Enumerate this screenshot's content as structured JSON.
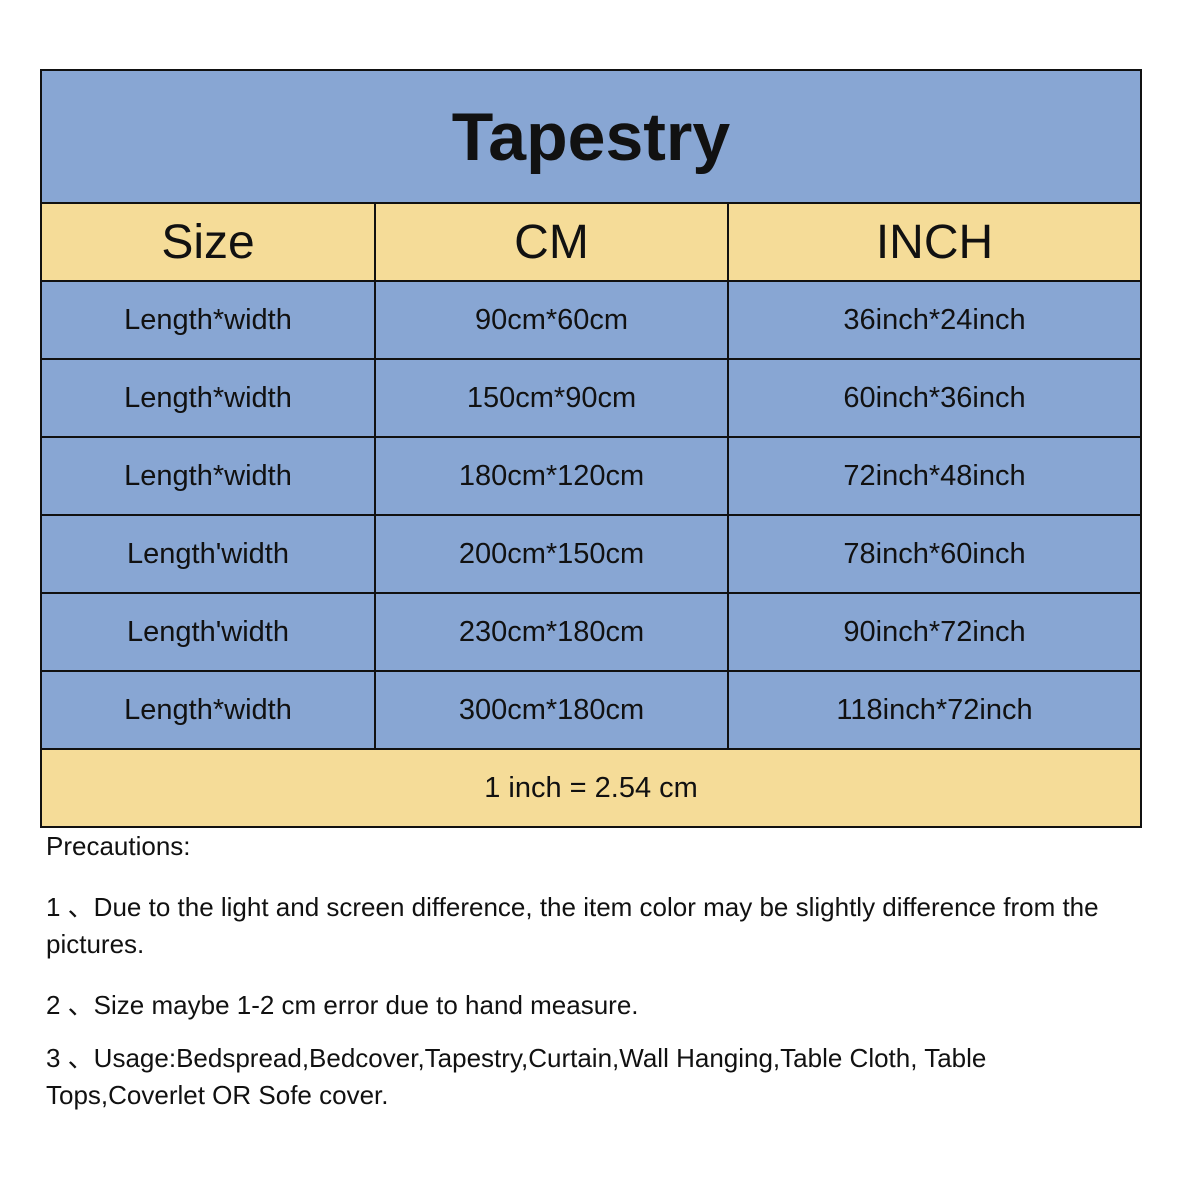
{
  "title": "Tapestry",
  "colors": {
    "blue": "#88a6d3",
    "yellow": "#f5dc98"
  },
  "columns": [
    "Size",
    "CM",
    "INCH"
  ],
  "rows": [
    [
      "Length*width",
      "90cm*60cm",
      "36inch*24inch"
    ],
    [
      "Length*width",
      "150cm*90cm",
      "60inch*36inch"
    ],
    [
      "Length*width",
      "180cm*120cm",
      "72inch*48inch"
    ],
    [
      "Length'width",
      "200cm*150cm",
      "78inch*60inch"
    ],
    [
      "Length'width",
      "230cm*180cm",
      "90inch*72inch"
    ],
    [
      "Length*width",
      "300cm*180cm",
      "118inch*72inch"
    ]
  ],
  "conversion": "1 inch = 2.54 cm",
  "precautions": {
    "heading": "Precautions:",
    "items": [
      "1 、Due to the light and screen difference, the item color may be slightly difference from  the  pictures.",
      "2 、Size maybe 1-2 cm error due to hand measure.",
      "3 、Usage:Bedspread,Bedcover,Tapestry,Curtain,Wall Hanging,Table Cloth, Table Tops,Coverlet  OR  Sofe  cover."
    ]
  }
}
